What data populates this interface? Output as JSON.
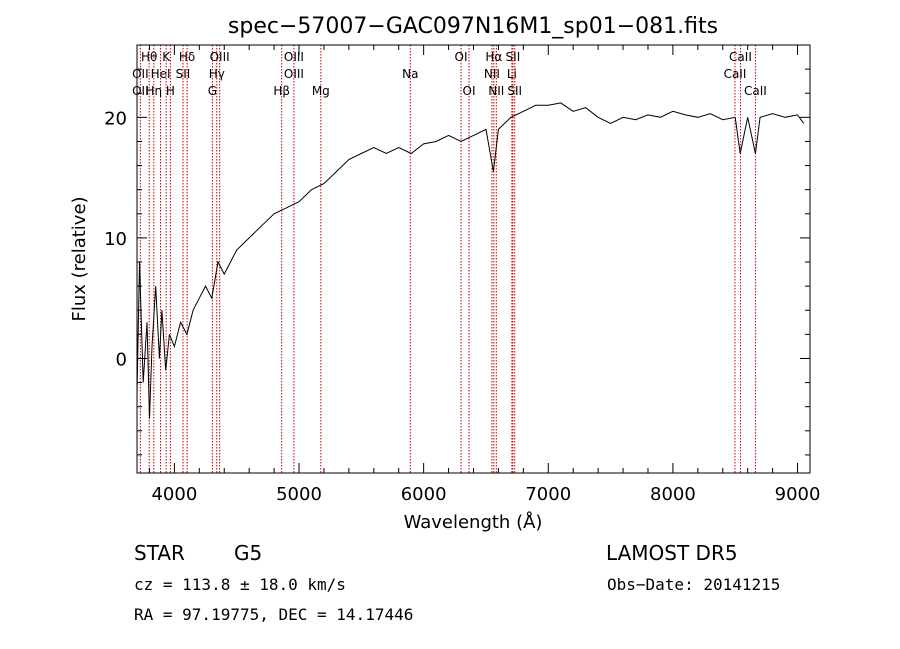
{
  "chart_data": {
    "type": "line",
    "title": "spec−57007−GAC097N16M1_sp01−081.fits",
    "xlabel": "Wavelength (Å)",
    "ylabel": "Flux (relative)",
    "xlim": [
      3700,
      9100
    ],
    "ylim": [
      -9.5,
      26
    ],
    "xticks": [
      4000,
      5000,
      6000,
      7000,
      8000,
      9000
    ],
    "xtick_labels": [
      "4000",
      "5000",
      "6000",
      "7000",
      "8000",
      "9000"
    ],
    "yticks": [
      0,
      10,
      20
    ],
    "ytick_labels": [
      "0",
      "10",
      "20"
    ],
    "grid": false,
    "legend": "none",
    "line_color": "#000000",
    "marker_color": "#cc0000",
    "series": [
      {
        "x": [
          3700,
          3720,
          3750,
          3780,
          3800,
          3820,
          3850,
          3880,
          3900,
          3930,
          3960,
          4000,
          4050,
          4100,
          4150,
          4200,
          4250,
          4300,
          4350,
          4400,
          4500,
          4600,
          4700,
          4800,
          4900,
          5000,
          5100,
          5200,
          5300,
          5400,
          5500,
          5600,
          5700,
          5800,
          5900,
          6000,
          6100,
          6200,
          6300,
          6400,
          6500,
          6560,
          6600,
          6700,
          6800,
          6900,
          7000,
          7100,
          7200,
          7300,
          7400,
          7500,
          7600,
          7700,
          7800,
          7900,
          8000,
          8100,
          8200,
          8300,
          8400,
          8500,
          8540,
          8600,
          8662,
          8700,
          8800,
          8900,
          9000,
          9050
        ],
        "y": [
          -3,
          8,
          -2,
          3,
          -5,
          1,
          6,
          0,
          4,
          -1,
          2,
          1,
          3,
          2,
          4,
          5,
          6,
          5,
          8,
          7,
          9,
          10,
          11,
          12,
          12.5,
          13,
          14,
          14.5,
          15.5,
          16.5,
          17,
          17.5,
          17,
          17.5,
          17,
          17.8,
          18,
          18.5,
          18,
          18.5,
          19,
          15.5,
          19,
          20,
          20.5,
          21,
          21,
          21.2,
          20.5,
          20.8,
          20,
          19.5,
          20,
          19.8,
          20.2,
          20,
          20.5,
          20.2,
          20,
          20.3,
          19.8,
          20,
          17,
          20,
          17,
          20,
          20.3,
          20,
          20.2,
          19.5
        ]
      }
    ],
    "annotations": {
      "lines": [
        {
          "name": "Hθ",
          "x": 3798,
          "row": 1
        },
        {
          "name": "K",
          "x": 3934,
          "row": 1
        },
        {
          "name": "Hδ",
          "x": 4102,
          "row": 1
        },
        {
          "name": "OIII",
          "x": 4363,
          "row": 1
        },
        {
          "name": "OIII",
          "x": 4959,
          "row": 1
        },
        {
          "name": "OI",
          "x": 6300,
          "row": 1
        },
        {
          "name": "Hα",
          "x": 6563,
          "row": 1
        },
        {
          "name": "SII",
          "x": 6716,
          "row": 1
        },
        {
          "name": "CaII",
          "x": 8542,
          "row": 1
        },
        {
          "name": "OII",
          "x": 3727,
          "row": 2
        },
        {
          "name": "HeI",
          "x": 3889,
          "row": 2
        },
        {
          "name": "SII",
          "x": 4069,
          "row": 2
        },
        {
          "name": "Hγ",
          "x": 4340,
          "row": 2
        },
        {
          "name": "OIII",
          "x": 4959,
          "row": 2
        },
        {
          "name": "Na",
          "x": 5893,
          "row": 2
        },
        {
          "name": "NII",
          "x": 6548,
          "row": 2
        },
        {
          "name": "Li",
          "x": 6708,
          "row": 2
        },
        {
          "name": "CaII",
          "x": 8498,
          "row": 2
        },
        {
          "name": "OII",
          "x": 3727,
          "row": 3
        },
        {
          "name": "Hη",
          "x": 3835,
          "row": 3
        },
        {
          "name": "H",
          "x": 3968,
          "row": 3
        },
        {
          "name": "G",
          "x": 4305,
          "row": 3
        },
        {
          "name": "Hβ",
          "x": 4861,
          "row": 3
        },
        {
          "name": "Mg",
          "x": 5175,
          "row": 3
        },
        {
          "name": "OI",
          "x": 6364,
          "row": 3
        },
        {
          "name": "NII",
          "x": 6583,
          "row": 3
        },
        {
          "name": "SII",
          "x": 6731,
          "row": 3
        },
        {
          "name": "CaII",
          "x": 8662,
          "row": 3
        }
      ]
    }
  },
  "info": {
    "class_label": "STAR",
    "subclass": "G5",
    "survey": "LAMOST DR5",
    "cz": "cz = 113.8 ± 18.0 km/s",
    "obs_date": "Obs−Date: 20141215",
    "coords": "RA =  97.19775, DEC =  14.17446"
  }
}
